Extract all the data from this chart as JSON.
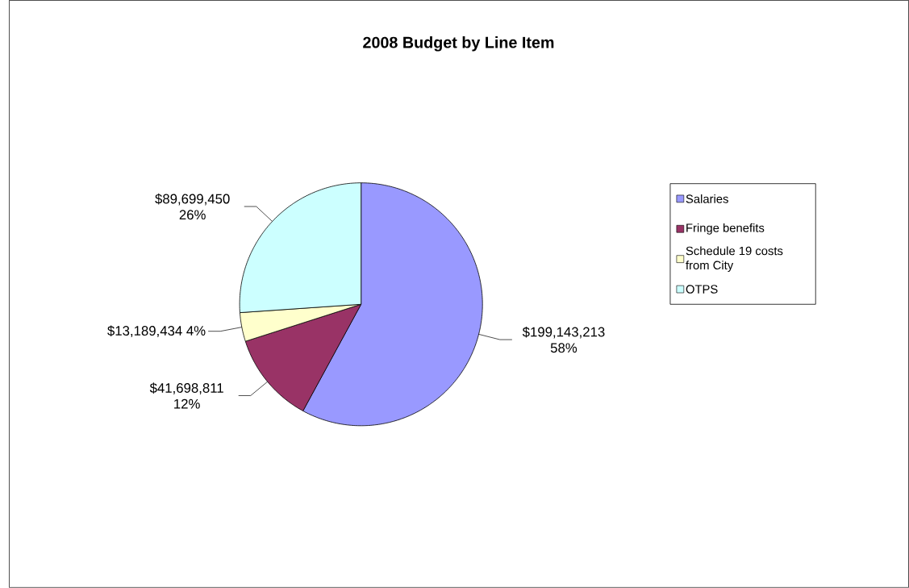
{
  "chart_data": {
    "type": "pie",
    "title": "2008 Budget by Line Item",
    "categories": [
      "Salaries",
      "Fringe benefits",
      "Schedule 19 costs from City",
      "OTPS"
    ],
    "values": [
      199143213,
      41698811,
      13189434,
      89699450
    ],
    "colors": [
      "#9999ff",
      "#993366",
      "#ffffcc",
      "#ccffff"
    ],
    "value_labels": [
      "$199,143,213 58%",
      "$41,698,811 12%",
      "$13,189,434 4%",
      "$89,699,450 26%"
    ],
    "legend": "right"
  }
}
